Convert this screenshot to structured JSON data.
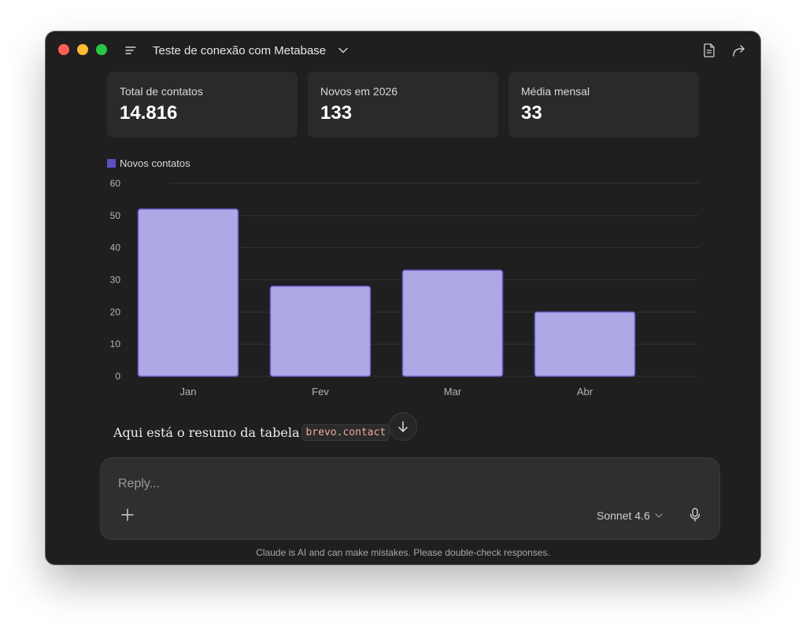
{
  "window": {
    "title": "Teste de conexão com Metabase"
  },
  "stats": [
    {
      "label": "Total de contatos",
      "value": "14.816"
    },
    {
      "label": "Novos em 2026",
      "value": "133"
    },
    {
      "label": "Média mensal",
      "value": "33"
    }
  ],
  "chart_data": {
    "type": "bar",
    "categories": [
      "Jan",
      "Fev",
      "Mar",
      "Abr"
    ],
    "series": [
      {
        "name": "Novos contatos",
        "values": [
          52,
          28,
          33,
          20
        ],
        "color": "#aea8e6",
        "border": "#6d5fd0"
      }
    ],
    "legend_color": "#5b4fc4",
    "ylim": [
      0,
      60
    ],
    "yticks": [
      0,
      10,
      20,
      30,
      40,
      50,
      60
    ],
    "grid": true,
    "legend": "top-left"
  },
  "message": {
    "text_before": "Aqui está o resumo da tabela",
    "code": "brevo.contact",
    "text_after": ":"
  },
  "composer": {
    "placeholder": "Reply...",
    "model": "Sonnet 4.6"
  },
  "footer": {
    "disclaimer": "Claude is AI and can make mistakes. Please double-check responses."
  }
}
